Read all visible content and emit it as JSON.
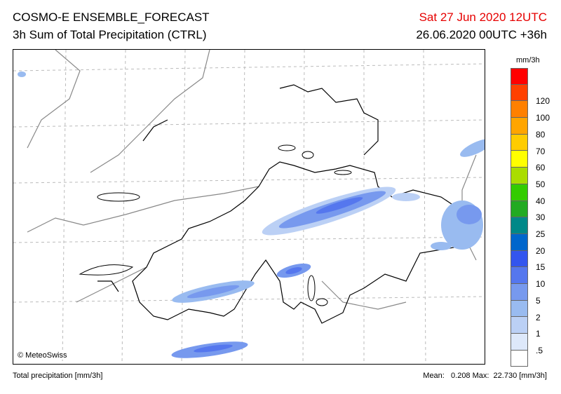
{
  "header": {
    "title": "COSMO-E ENSEMBLE_FORECAST",
    "subtitle": "3h Sum of Total Precipitation (CTRL)",
    "valid_time": "Sat 27 Jun 2020 12UTC",
    "run_info": "26.06.2020 00UTC +36h"
  },
  "map": {
    "credit": "© MeteoSwiss",
    "background": "#ffffff",
    "borders_color": "#000000",
    "grid": true
  },
  "legend": {
    "unit": "mm/3h",
    "levels": [
      {
        "label": "",
        "color": "#ff0000"
      },
      {
        "label": "120",
        "color": "#ff4000"
      },
      {
        "label": "100",
        "color": "#ff8000"
      },
      {
        "label": "80",
        "color": "#ffa500"
      },
      {
        "label": "70",
        "color": "#ffcc00"
      },
      {
        "label": "60",
        "color": "#ffff00"
      },
      {
        "label": "50",
        "color": "#aadd00"
      },
      {
        "label": "40",
        "color": "#33cc00"
      },
      {
        "label": "30",
        "color": "#22aa22"
      },
      {
        "label": "25",
        "color": "#008888"
      },
      {
        "label": "20",
        "color": "#0066cc"
      },
      {
        "label": "15",
        "color": "#3355ee"
      },
      {
        "label": "10",
        "color": "#5577ee"
      },
      {
        "label": "5",
        "color": "#7799ee"
      },
      {
        "label": "2",
        "color": "#99bbf0"
      },
      {
        "label": "1",
        "color": "#bbd0f5"
      },
      {
        "label": ".5",
        "color": "#dde8fa"
      },
      {
        "label": "",
        "color": "#ffffff"
      }
    ]
  },
  "footer": {
    "left": "Total precipitation [mm/3h]",
    "right": "Mean:   0.208 Max:  22.730 [mm/3h]"
  }
}
